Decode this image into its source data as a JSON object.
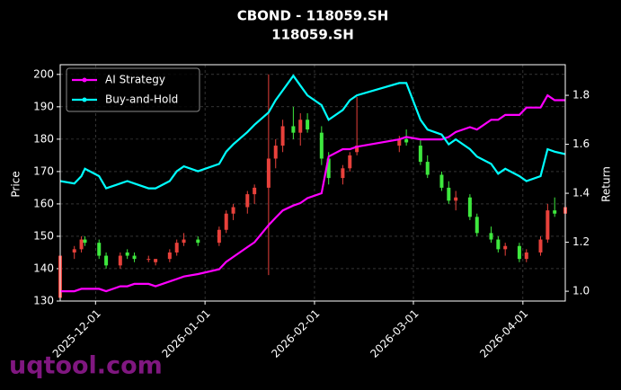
{
  "chart_data": {
    "type": "candlestick",
    "title": "CBOND - 118059.SH",
    "subtitle": "118059.SH",
    "ylabel": "Price",
    "y2label": "Return",
    "x": [
      "2025-11-21",
      "2025-11-25",
      "2025-11-27",
      "2025-11-28",
      "2025-12-02",
      "2025-12-04",
      "2025-12-08",
      "2025-12-10",
      "2025-12-12",
      "2025-12-16",
      "2025-12-18",
      "2025-12-22",
      "2025-12-24",
      "2025-12-26",
      "2025-12-30",
      "2026-01-05",
      "2026-01-07",
      "2026-01-09",
      "2026-01-13",
      "2026-01-15",
      "2026-01-19",
      "2026-01-21",
      "2026-01-23",
      "2026-01-26",
      "2026-01-28",
      "2026-01-30",
      "2026-02-03",
      "2026-02-05",
      "2026-02-09",
      "2026-02-11",
      "2026-02-13",
      "2026-02-25",
      "2026-02-27",
      "2026-03-03",
      "2026-03-05",
      "2026-03-09",
      "2026-03-11",
      "2026-03-13",
      "2026-03-17",
      "2026-03-19",
      "2026-03-23",
      "2026-03-25",
      "2026-03-27",
      "2026-03-31",
      "2026-04-02",
      "2026-04-06",
      "2026-04-08",
      "2026-04-10",
      "2026-04-13"
    ],
    "open": [
      131,
      145,
      146,
      149,
      148,
      144,
      141,
      145,
      144,
      143,
      142,
      143,
      145,
      148,
      149,
      148,
      152,
      157,
      159,
      163,
      165,
      174,
      178,
      184,
      182,
      186,
      182,
      174,
      168,
      171,
      176,
      178,
      180,
      178,
      173,
      169,
      165,
      161,
      162,
      156,
      151,
      149,
      146,
      147,
      143,
      145,
      149,
      158,
      157
    ],
    "high": [
      145,
      147,
      150,
      150,
      149,
      145,
      145,
      146,
      145,
      144,
      143,
      146,
      149,
      151,
      150,
      153,
      158,
      160,
      164,
      166,
      200,
      180,
      186,
      190,
      188,
      188,
      184,
      176,
      172,
      176,
      193,
      181,
      183,
      180,
      175,
      170,
      167,
      164,
      163,
      157,
      153,
      150,
      148,
      148,
      146,
      150,
      160,
      162,
      160
    ],
    "low": [
      130,
      143,
      145,
      147,
      143,
      140,
      140,
      143,
      142,
      142,
      141,
      142,
      144,
      147,
      147,
      147,
      151,
      155,
      157,
      160,
      138,
      171,
      176,
      180,
      178,
      182,
      172,
      166,
      166,
      170,
      175,
      176,
      178,
      172,
      168,
      164,
      160,
      158,
      155,
      150,
      148,
      145,
      144,
      142,
      142,
      144,
      148,
      156,
      155
    ],
    "close": [
      144,
      146,
      149,
      148,
      144,
      141,
      144,
      144,
      143,
      143,
      143,
      145,
      148,
      149,
      148,
      152,
      157,
      159,
      163,
      165,
      174,
      178,
      184,
      182,
      186,
      183,
      174,
      168,
      171,
      175,
      178,
      180,
      179,
      173,
      169,
      165,
      161,
      162,
      156,
      151,
      149,
      146,
      147,
      143,
      145,
      149,
      158,
      157,
      159
    ],
    "up_color": "#e8413b",
    "down_color": "#3ee83e",
    "series": [
      {
        "name": "AI Strategy",
        "color": "#ff00ff",
        "axis": "y2",
        "values": [
          1.0,
          1.0,
          1.01,
          1.01,
          1.01,
          1.0,
          1.02,
          1.02,
          1.03,
          1.03,
          1.02,
          1.04,
          1.05,
          1.06,
          1.07,
          1.09,
          1.12,
          1.14,
          1.18,
          1.2,
          1.27,
          1.3,
          1.33,
          1.35,
          1.36,
          1.38,
          1.4,
          1.55,
          1.58,
          1.58,
          1.59,
          1.62,
          1.63,
          1.62,
          1.62,
          1.62,
          1.63,
          1.65,
          1.67,
          1.66,
          1.7,
          1.7,
          1.72,
          1.72,
          1.75,
          1.75,
          1.8,
          1.78,
          1.78
        ]
      },
      {
        "name": "Buy-and-Hold",
        "color": "#00ffff",
        "axis": "y2",
        "values": [
          1.45,
          1.44,
          1.47,
          1.5,
          1.47,
          1.42,
          1.44,
          1.45,
          1.44,
          1.42,
          1.42,
          1.45,
          1.49,
          1.51,
          1.49,
          1.52,
          1.57,
          1.6,
          1.65,
          1.68,
          1.73,
          1.78,
          1.82,
          1.88,
          1.84,
          1.8,
          1.76,
          1.7,
          1.74,
          1.78,
          1.8,
          1.85,
          1.85,
          1.7,
          1.66,
          1.64,
          1.6,
          1.62,
          1.58,
          1.55,
          1.52,
          1.48,
          1.5,
          1.47,
          1.45,
          1.47,
          1.58,
          1.57,
          1.56
        ]
      }
    ],
    "xlim": [
      "2025-11-21",
      "2026-04-13"
    ],
    "xticks": [
      "2025-12-01",
      "2026-01-01",
      "2026-02-01",
      "2026-03-01",
      "2026-04-01"
    ],
    "ylim": [
      130,
      203
    ],
    "yticks": [
      130,
      140,
      150,
      160,
      170,
      180,
      190,
      200
    ],
    "y2lim": [
      0.96,
      1.925
    ],
    "y2ticks": [
      {
        "value": 1.0,
        "label": "1.0"
      },
      1.2,
      1.4,
      1.6,
      1.8
    ],
    "grid": true,
    "legend": "upper left"
  },
  "watermark": "uqtool.com"
}
